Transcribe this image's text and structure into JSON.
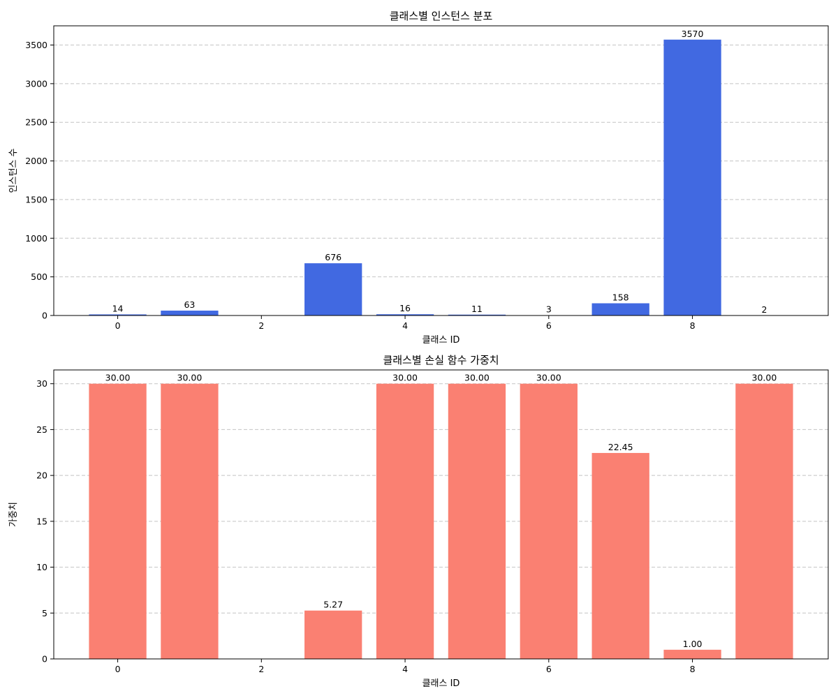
{
  "chart_data": [
    {
      "type": "bar",
      "title": "클래스별 인스턴스 분포",
      "xlabel": "클래스 ID",
      "ylabel": "인스턴스 수",
      "categories": [
        0,
        1,
        2,
        3,
        4,
        5,
        6,
        7,
        8,
        9
      ],
      "values": [
        14,
        63,
        0,
        676,
        16,
        11,
        3,
        158,
        3570,
        2
      ],
      "value_labels": [
        "14",
        "63",
        "",
        "676",
        "16",
        "11",
        "3",
        "158",
        "3570",
        "2"
      ],
      "xticks": [
        0,
        2,
        4,
        6,
        8
      ],
      "xtick_labels": [
        "0",
        "2",
        "4",
        "6",
        "8"
      ],
      "yticks": [
        0,
        500,
        1000,
        1500,
        2000,
        2500,
        3000,
        3500
      ],
      "ytick_labels": [
        "0",
        "500",
        "1000",
        "1500",
        "2000",
        "2500",
        "3000",
        "3500"
      ],
      "ylim": [
        0,
        3748.5
      ],
      "xlim": [
        -0.89,
        9.89
      ],
      "grid": "y",
      "color": "#4169e1"
    },
    {
      "type": "bar",
      "title": "클래스별 손실 함수 가중치",
      "xlabel": "클래스 ID",
      "ylabel": "가중치",
      "categories": [
        0,
        1,
        2,
        3,
        4,
        5,
        6,
        7,
        8,
        9
      ],
      "values": [
        30.0,
        30.0,
        0,
        5.27,
        30.0,
        30.0,
        30.0,
        22.45,
        1.0,
        30.0
      ],
      "value_labels": [
        "30.00",
        "30.00",
        "",
        "5.27",
        "30.00",
        "30.00",
        "30.00",
        "22.45",
        "1.00",
        "30.00"
      ],
      "xticks": [
        0,
        2,
        4,
        6,
        8
      ],
      "xtick_labels": [
        "0",
        "2",
        "4",
        "6",
        "8"
      ],
      "yticks": [
        0,
        5,
        10,
        15,
        20,
        25,
        30
      ],
      "ytick_labels": [
        "0",
        "5",
        "10",
        "15",
        "20",
        "25",
        "30"
      ],
      "ylim": [
        0,
        31.5
      ],
      "xlim": [
        -0.89,
        9.89
      ],
      "grid": "y",
      "color": "#fa8072"
    }
  ]
}
